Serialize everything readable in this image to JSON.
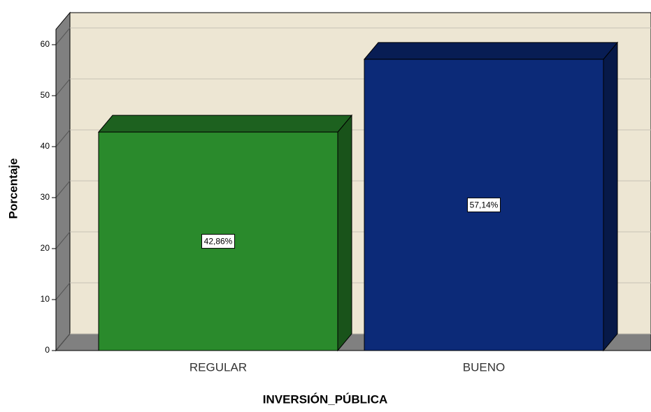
{
  "chart_data": {
    "type": "bar3d",
    "xlabel": "INVERSIÓN_PÚBLICA",
    "ylabel": "Porcentaje",
    "categories": [
      "REGULAR",
      "BUENO"
    ],
    "values": [
      42.86,
      57.14
    ],
    "value_labels": [
      "42,86%",
      "57,14%"
    ],
    "colors": [
      "#2a8a2c",
      "#0c2a78"
    ],
    "ylim": [
      0,
      63
    ],
    "yticks": [
      0,
      10,
      20,
      30,
      40,
      50,
      60
    ],
    "grid": true
  }
}
